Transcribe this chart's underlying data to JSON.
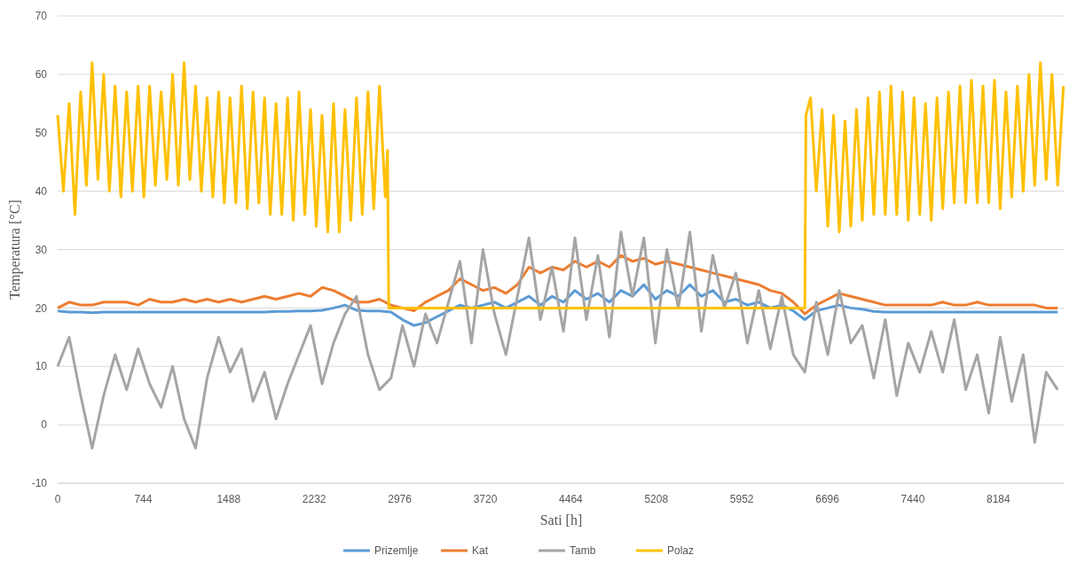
{
  "chart_data": {
    "type": "line",
    "xlabel": "Sati [h]",
    "ylabel": "Temperatura [°C]",
    "xlim": [
      0,
      8760
    ],
    "xticks": [
      0,
      744,
      1488,
      2232,
      2976,
      3720,
      4464,
      5208,
      5952,
      6696,
      7440,
      8184
    ],
    "ylim": [
      -10,
      70
    ],
    "yticks": [
      -10,
      0,
      10,
      20,
      30,
      40,
      50,
      60,
      70
    ],
    "grid": "y",
    "legend": "bottom",
    "line_style": "solid",
    "x": [
      0,
      100,
      200,
      300,
      400,
      500,
      600,
      700,
      800,
      900,
      1000,
      1100,
      1200,
      1300,
      1400,
      1500,
      1600,
      1700,
      1800,
      1900,
      2000,
      2100,
      2200,
      2300,
      2400,
      2500,
      2600,
      2700,
      2800,
      2900,
      3000,
      3100,
      3200,
      3300,
      3400,
      3500,
      3600,
      3700,
      3800,
      3900,
      4000,
      4100,
      4200,
      4300,
      4400,
      4500,
      4600,
      4700,
      4800,
      4900,
      5000,
      5100,
      5200,
      5300,
      5400,
      5500,
      5600,
      5700,
      5800,
      5900,
      6000,
      6100,
      6200,
      6300,
      6400,
      6500,
      6600,
      6700,
      6800,
      6900,
      7000,
      7100,
      7200,
      7300,
      7400,
      7500,
      7600,
      7700,
      7800,
      7900,
      8000,
      8100,
      8200,
      8300,
      8400,
      8500,
      8600,
      8700
    ],
    "series": [
      {
        "name": "Prizemlje",
        "color": "#5b9bd5",
        "values": [
          19.5,
          19.3,
          19.3,
          19.2,
          19.3,
          19.3,
          19.3,
          19.3,
          19.3,
          19.3,
          19.3,
          19.3,
          19.3,
          19.3,
          19.3,
          19.3,
          19.3,
          19.3,
          19.3,
          19.4,
          19.4,
          19.5,
          19.5,
          19.6,
          20,
          20.5,
          19.6,
          19.5,
          19.5,
          19.3,
          18,
          17,
          17.5,
          18.5,
          19.5,
          20.5,
          20,
          20.5,
          21,
          20,
          21,
          22,
          20.5,
          22,
          21,
          23,
          21.5,
          22.5,
          21,
          23,
          22,
          24,
          21.5,
          23,
          22,
          24,
          22,
          23,
          21,
          21.5,
          20.5,
          21,
          20,
          20.5,
          19.5,
          18,
          19.5,
          20,
          20.5,
          20,
          19.8,
          19.4,
          19.3,
          19.3,
          19.3,
          19.3,
          19.3,
          19.3,
          19.3,
          19.3,
          19.3,
          19.3,
          19.3,
          19.3,
          19.3,
          19.3,
          19.3,
          19.3
        ]
      },
      {
        "name": "Kat",
        "color": "#ed7d31",
        "values": [
          20,
          21,
          20.5,
          20.5,
          21,
          21,
          21,
          20.5,
          21.5,
          21,
          21,
          21.5,
          21,
          21.5,
          21,
          21.5,
          21,
          21.5,
          22,
          21.5,
          22,
          22.5,
          22,
          23.5,
          23,
          22,
          21,
          21,
          21.5,
          20.5,
          20,
          19.5,
          21,
          22,
          23,
          25,
          24,
          23,
          23.5,
          22.5,
          24,
          27,
          26,
          27,
          26.5,
          28,
          27,
          28,
          27,
          29,
          28,
          28.5,
          27.5,
          28,
          27.5,
          27,
          26.5,
          26,
          25.5,
          25,
          24.5,
          24,
          23,
          22.5,
          21,
          19,
          20.5,
          21.5,
          22.5,
          22,
          21.5,
          21,
          20.5,
          20.5,
          20.5,
          20.5,
          20.5,
          21,
          20.5,
          20.5,
          21,
          20.5,
          20.5,
          20.5,
          20.5,
          20.5,
          20,
          20
        ]
      },
      {
        "name": "Tamb",
        "color": "#a5a5a5",
        "values": [
          10,
          15,
          5,
          -4,
          5,
          12,
          6,
          13,
          7,
          3,
          10,
          1,
          -4,
          8,
          15,
          9,
          13,
          4,
          9,
          1,
          7,
          12,
          17,
          7,
          14,
          19,
          22,
          12,
          6,
          8,
          17,
          10,
          19,
          14,
          21,
          28,
          14,
          30,
          19,
          12,
          22,
          32,
          18,
          27,
          16,
          32,
          18,
          29,
          15,
          33,
          22,
          32,
          14,
          30,
          20,
          33,
          16,
          29,
          20,
          26,
          14,
          23,
          13,
          22,
          12,
          9,
          21,
          12,
          23,
          14,
          17,
          8,
          18,
          5,
          14,
          9,
          16,
          9,
          18,
          6,
          12,
          2,
          15,
          4,
          12,
          -3,
          9,
          6
        ]
      },
      {
        "name": "Polaz",
        "color": "#ffc000",
        "x": [
          0,
          50,
          100,
          150,
          200,
          250,
          300,
          350,
          400,
          450,
          500,
          550,
          600,
          650,
          700,
          750,
          800,
          850,
          900,
          950,
          1000,
          1050,
          1100,
          1150,
          1200,
          1250,
          1300,
          1350,
          1400,
          1450,
          1500,
          1550,
          1600,
          1650,
          1700,
          1750,
          1800,
          1850,
          1900,
          1950,
          2000,
          2050,
          2100,
          2150,
          2200,
          2250,
          2300,
          2350,
          2400,
          2450,
          2500,
          2550,
          2600,
          2650,
          2700,
          2750,
          2800,
          2850,
          2870,
          2880,
          6500,
          6510,
          6550,
          6600,
          6650,
          6700,
          6750,
          6800,
          6850,
          6900,
          6950,
          7000,
          7050,
          7100,
          7150,
          7200,
          7250,
          7300,
          7350,
          7400,
          7450,
          7500,
          7550,
          7600,
          7650,
          7700,
          7750,
          7800,
          7850,
          7900,
          7950,
          8000,
          8050,
          8100,
          8150,
          8200,
          8250,
          8300,
          8350,
          8400,
          8450,
          8500,
          8550,
          8600,
          8650,
          8700,
          8750
        ],
        "values": [
          53,
          40,
          55,
          36,
          57,
          41,
          62,
          42,
          60,
          40,
          58,
          39,
          57,
          40,
          58,
          39,
          58,
          41,
          57,
          42,
          60,
          41,
          62,
          42,
          58,
          40,
          56,
          39,
          57,
          38,
          56,
          38,
          58,
          37,
          57,
          38,
          56,
          36,
          55,
          36,
          56,
          35,
          57,
          36,
          54,
          34,
          53,
          33,
          55,
          33,
          54,
          35,
          56,
          36,
          57,
          37,
          58,
          39,
          47,
          20,
          20,
          53,
          56,
          40,
          54,
          34,
          53,
          33,
          52,
          34,
          54,
          35,
          56,
          36,
          57,
          36,
          58,
          36,
          57,
          35,
          56,
          36,
          55,
          35,
          56,
          37,
          57,
          38,
          58,
          38,
          59,
          38,
          58,
          38,
          59,
          37,
          57,
          39,
          58,
          40,
          60,
          41,
          62,
          42,
          60,
          41,
          58
        ]
      }
    ]
  }
}
